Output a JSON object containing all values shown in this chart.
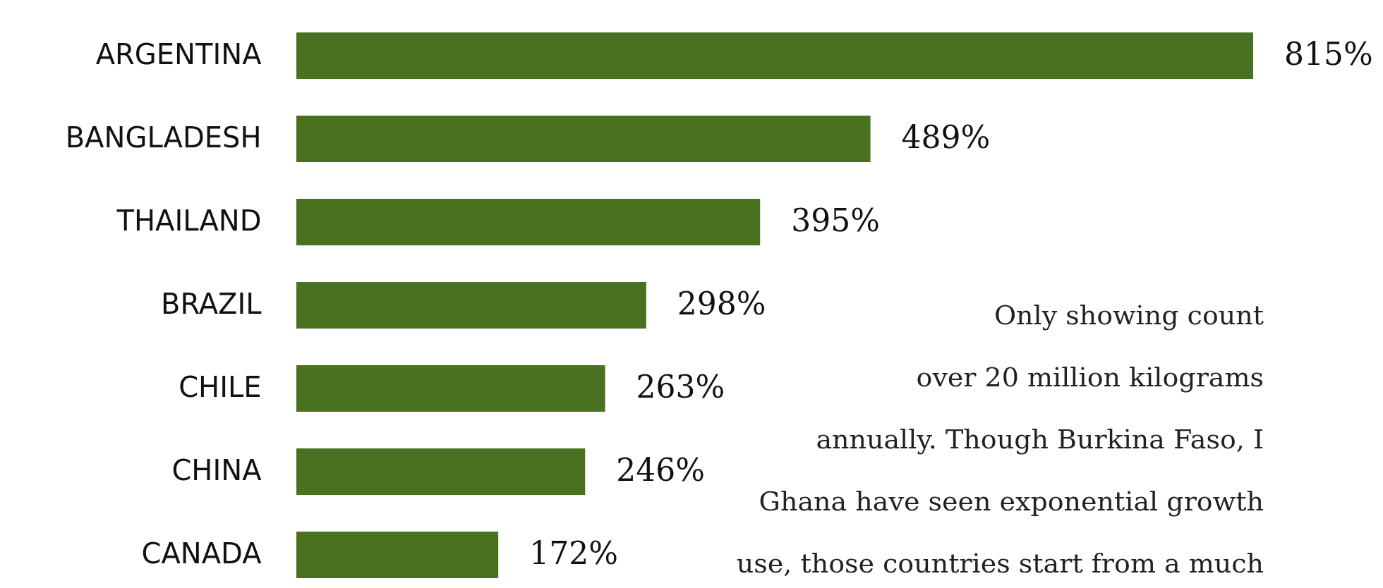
{
  "chart_data": {
    "type": "bar",
    "orientation": "horizontal",
    "categories": [
      "ARGENTINA",
      "BANGLADESH",
      "THAILAND",
      "BRAZIL",
      "CHILE",
      "CHINA",
      "CANADA"
    ],
    "values": [
      815,
      489,
      395,
      298,
      263,
      246,
      172
    ],
    "value_labels": [
      "815%",
      "489%",
      "395%",
      "298%",
      "263%",
      "246%",
      "172%"
    ],
    "color": "#4a7120",
    "annotations": [
      "Only showing count",
      "over 20 million kilograms",
      "annually. Though Burkina Faso, I",
      "Ghana have seen exponential growth",
      "use, those countries start from a much"
    ]
  }
}
